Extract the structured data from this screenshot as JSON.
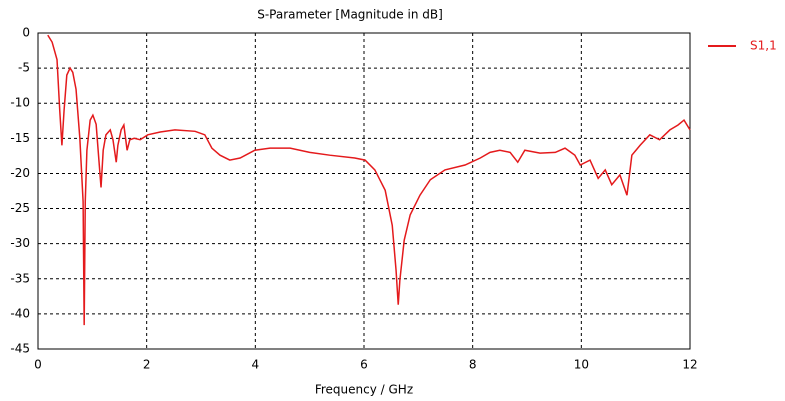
{
  "chart_data": {
    "type": "line",
    "title": "S-Parameter [Magnitude in dB]",
    "xlabel": "Frequency / GHz",
    "xlim": [
      0,
      12
    ],
    "xticks": [
      0,
      2,
      4,
      6,
      8,
      10,
      12
    ],
    "ylim": [
      -45,
      0
    ],
    "yticks": [
      0,
      -5,
      -10,
      -15,
      -20,
      -25,
      -30,
      -35,
      -40,
      -45
    ],
    "grid": true,
    "legend": "right",
    "x": [
      0.18,
      0.26,
      0.35,
      0.4,
      0.44,
      0.48,
      0.53,
      0.59,
      0.64,
      0.7,
      0.77,
      0.83,
      0.85,
      0.87,
      0.9,
      0.96,
      1.01,
      1.07,
      1.12,
      1.16,
      1.2,
      1.25,
      1.33,
      1.38,
      1.44,
      1.47,
      1.53,
      1.58,
      1.64,
      1.69,
      1.77,
      1.88,
      2.02,
      2.25,
      2.52,
      2.89,
      3.07,
      3.2,
      3.35,
      3.53,
      3.72,
      3.99,
      4.27,
      4.64,
      5.0,
      5.37,
      5.83,
      6.02,
      6.2,
      6.39,
      6.52,
      6.59,
      6.63,
      6.66,
      6.74,
      6.85,
      7.03,
      7.22,
      7.49,
      7.86,
      8.14,
      8.32,
      8.5,
      8.69,
      8.83,
      8.96,
      9.24,
      9.52,
      9.7,
      9.88,
      9.98,
      10.16,
      10.31,
      10.44,
      10.56,
      10.71,
      10.84,
      10.93,
      11.08,
      11.26,
      11.44,
      11.63,
      11.78,
      11.89,
      12
    ],
    "series": [
      {
        "name": "S1,1",
        "color": "#e41a1c",
        "values": [
          -0.3,
          -1.3,
          -3.8,
          -11,
          -16,
          -11,
          -6,
          -5,
          -5.6,
          -8,
          -15,
          -24,
          -41.6,
          -24,
          -16.7,
          -12.4,
          -11.7,
          -13,
          -18,
          -22,
          -16.7,
          -14.5,
          -13.8,
          -15.2,
          -18.4,
          -16,
          -13.8,
          -13.1,
          -16.7,
          -15.2,
          -15,
          -15.2,
          -14.5,
          -14.1,
          -13.8,
          -14,
          -14.5,
          -16.4,
          -17.4,
          -18.1,
          -17.8,
          -16.7,
          -16.4,
          -16.4,
          -17,
          -17.4,
          -17.8,
          -18.1,
          -19.5,
          -22.4,
          -27.4,
          -33.8,
          -38.7,
          -35.2,
          -29.5,
          -25.9,
          -23.1,
          -20.9,
          -19.5,
          -18.8,
          -17.8,
          -17,
          -16.7,
          -17,
          -18.4,
          -16.7,
          -17.1,
          -17,
          -16.4,
          -17.4,
          -18.8,
          -18.1,
          -20.7,
          -19.5,
          -21.6,
          -20.2,
          -23.1,
          -17.4,
          -16,
          -14.5,
          -15.2,
          -13.8,
          -13.1,
          -12.4,
          -13.8
        ]
      }
    ]
  }
}
